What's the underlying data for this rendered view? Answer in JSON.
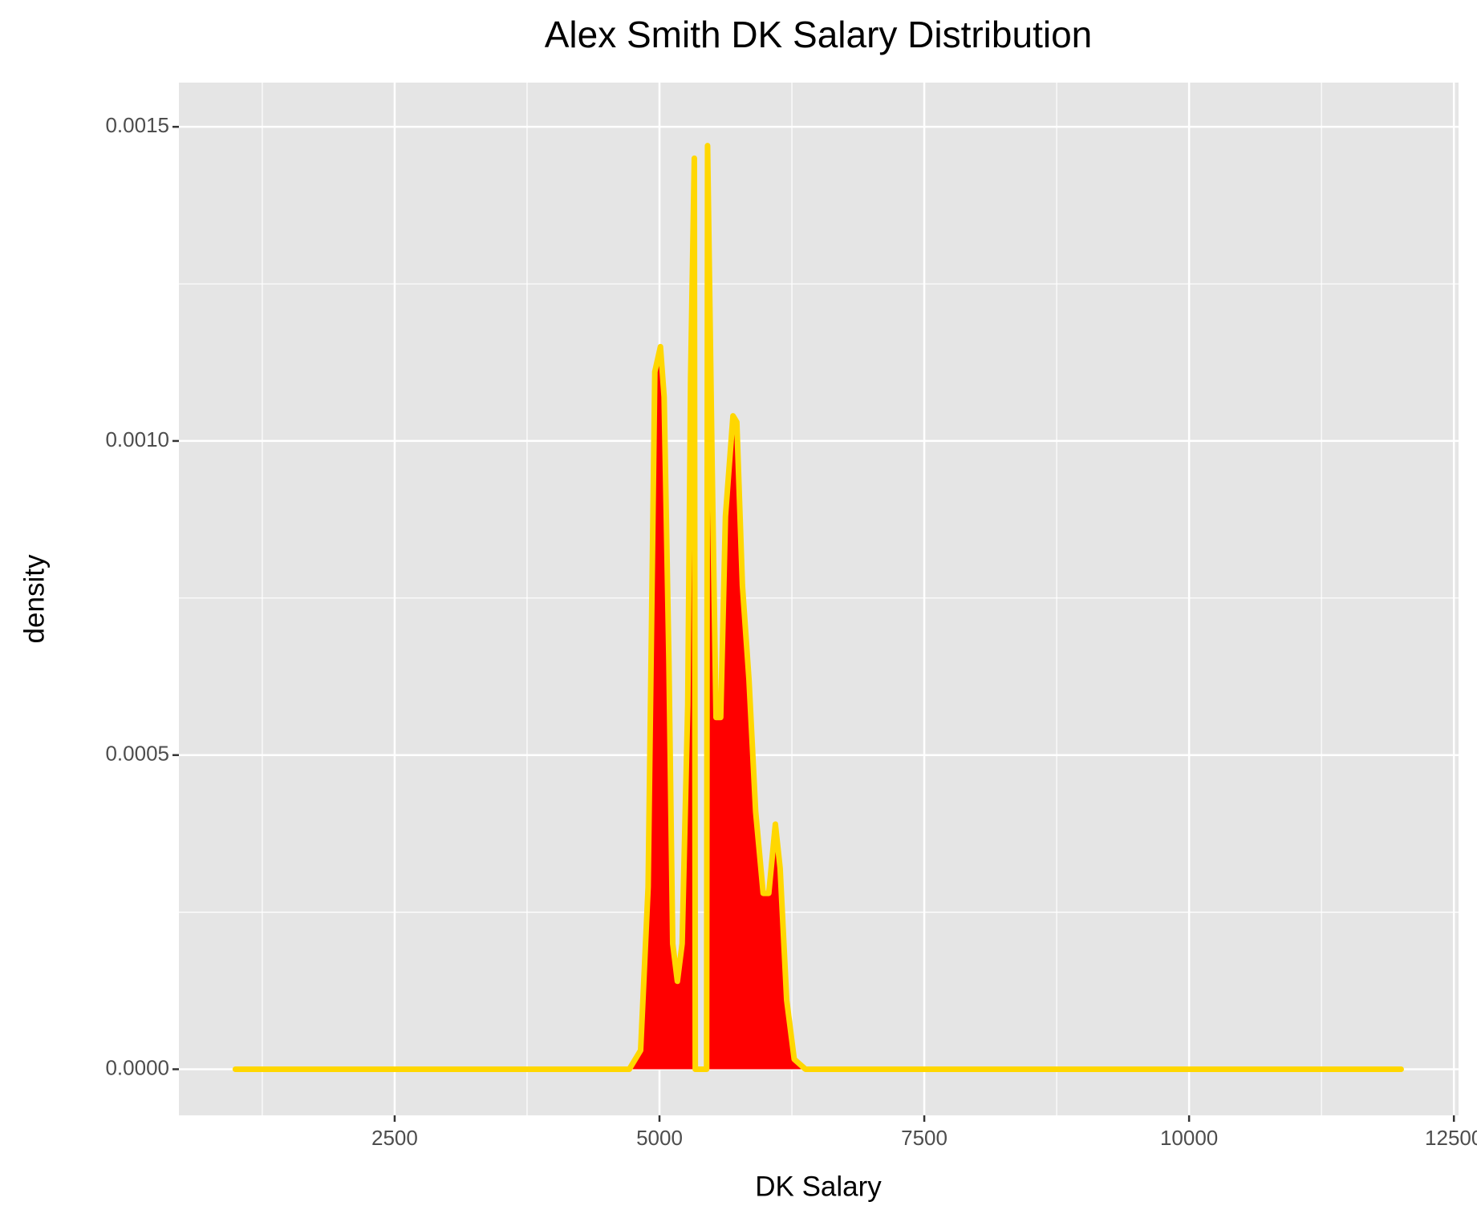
{
  "chart_data": {
    "type": "area",
    "title": "Alex Smith DK Salary Distribution",
    "xlabel": "DK Salary",
    "ylabel": "density",
    "x": [
      996,
      2000,
      3000,
      4000,
      4715,
      4822,
      4893,
      4956,
      5009,
      5044,
      5089,
      5125,
      5169,
      5214,
      5267,
      5294,
      5329,
      5338,
      5445,
      5454,
      5498,
      5534,
      5578,
      5623,
      5694,
      5730,
      5783,
      5845,
      5908,
      5979,
      6032,
      6094,
      6139,
      6201,
      6272,
      6379,
      8000,
      10000,
      12002
    ],
    "series": [
      {
        "name": "density",
        "color": "#ff0000",
        "line_color": "#ffd700",
        "values": [
          0,
          0,
          0,
          0,
          0,
          3e-05,
          0.00029,
          0.00111,
          0.00115,
          0.00107,
          0.00065,
          0.0002,
          0.00014,
          0.0002,
          0.00058,
          0.0011,
          0.00145,
          0,
          0,
          0.00147,
          0.00095,
          0.00056,
          0.00056,
          0.00088,
          0.00104,
          0.00103,
          0.00077,
          0.00062,
          0.00041,
          0.00028,
          0.00028,
          0.00039,
          0.00032,
          0.00011,
          1.6e-05,
          0,
          0,
          0,
          0
        ]
      }
    ],
    "xlim": [
      463,
      12544
    ],
    "xticks": [
      2500,
      5000,
      7500,
      10000,
      12500
    ],
    "ylim": [
      -7.34e-05,
      0.0015704
    ],
    "yticks": [
      {
        "value": 0,
        "label": "0.0000"
      },
      {
        "value": 0.0005,
        "label": "0.0005"
      },
      {
        "value": 0.001,
        "label": "0.0010"
      },
      {
        "value": 0.0015,
        "label": "0.0015"
      }
    ],
    "grid": true,
    "minor_grid": true
  }
}
